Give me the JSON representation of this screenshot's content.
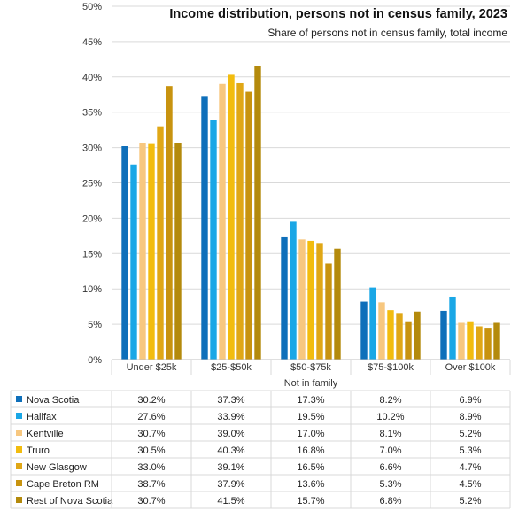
{
  "chart_data": {
    "type": "bar",
    "title": "Income distribution,  persons not in census family, 2023",
    "subtitle": "Share of persons not in census family,  total income",
    "xlabel": "Not in family",
    "ylabel": "",
    "ylim": [
      0,
      50
    ],
    "yticks": [
      0,
      5,
      10,
      15,
      20,
      25,
      30,
      35,
      40,
      45,
      50
    ],
    "ytick_suffix": "%",
    "grid": true,
    "legend": "data-table-below",
    "categories": [
      "Under $25k",
      "$25-$50k",
      "$50-$75k",
      "$75-$100k",
      "Over $100k"
    ],
    "series": [
      {
        "name": "Nova Scotia",
        "color": "#0e6fba",
        "values": [
          30.2,
          37.3,
          17.3,
          8.2,
          6.9
        ]
      },
      {
        "name": "Halifax",
        "color": "#1aa7e6",
        "values": [
          27.6,
          33.9,
          19.5,
          10.2,
          8.9
        ]
      },
      {
        "name": "Kentville",
        "color": "#f7c77f",
        "values": [
          30.7,
          39.0,
          17.0,
          8.1,
          5.2
        ]
      },
      {
        "name": "Truro",
        "color": "#f2bc0e",
        "values": [
          30.5,
          40.3,
          16.8,
          7.0,
          5.3
        ]
      },
      {
        "name": "New Glasgow",
        "color": "#e0a716",
        "values": [
          33.0,
          39.1,
          16.5,
          6.6,
          4.7
        ]
      },
      {
        "name": "Cape Breton RM",
        "color": "#c8930f",
        "values": [
          38.7,
          37.9,
          13.6,
          5.3,
          4.5
        ]
      },
      {
        "name": "Rest of Nova Scotia",
        "color": "#b48a0c",
        "values": [
          30.7,
          41.5,
          15.7,
          6.8,
          5.2
        ]
      }
    ]
  }
}
